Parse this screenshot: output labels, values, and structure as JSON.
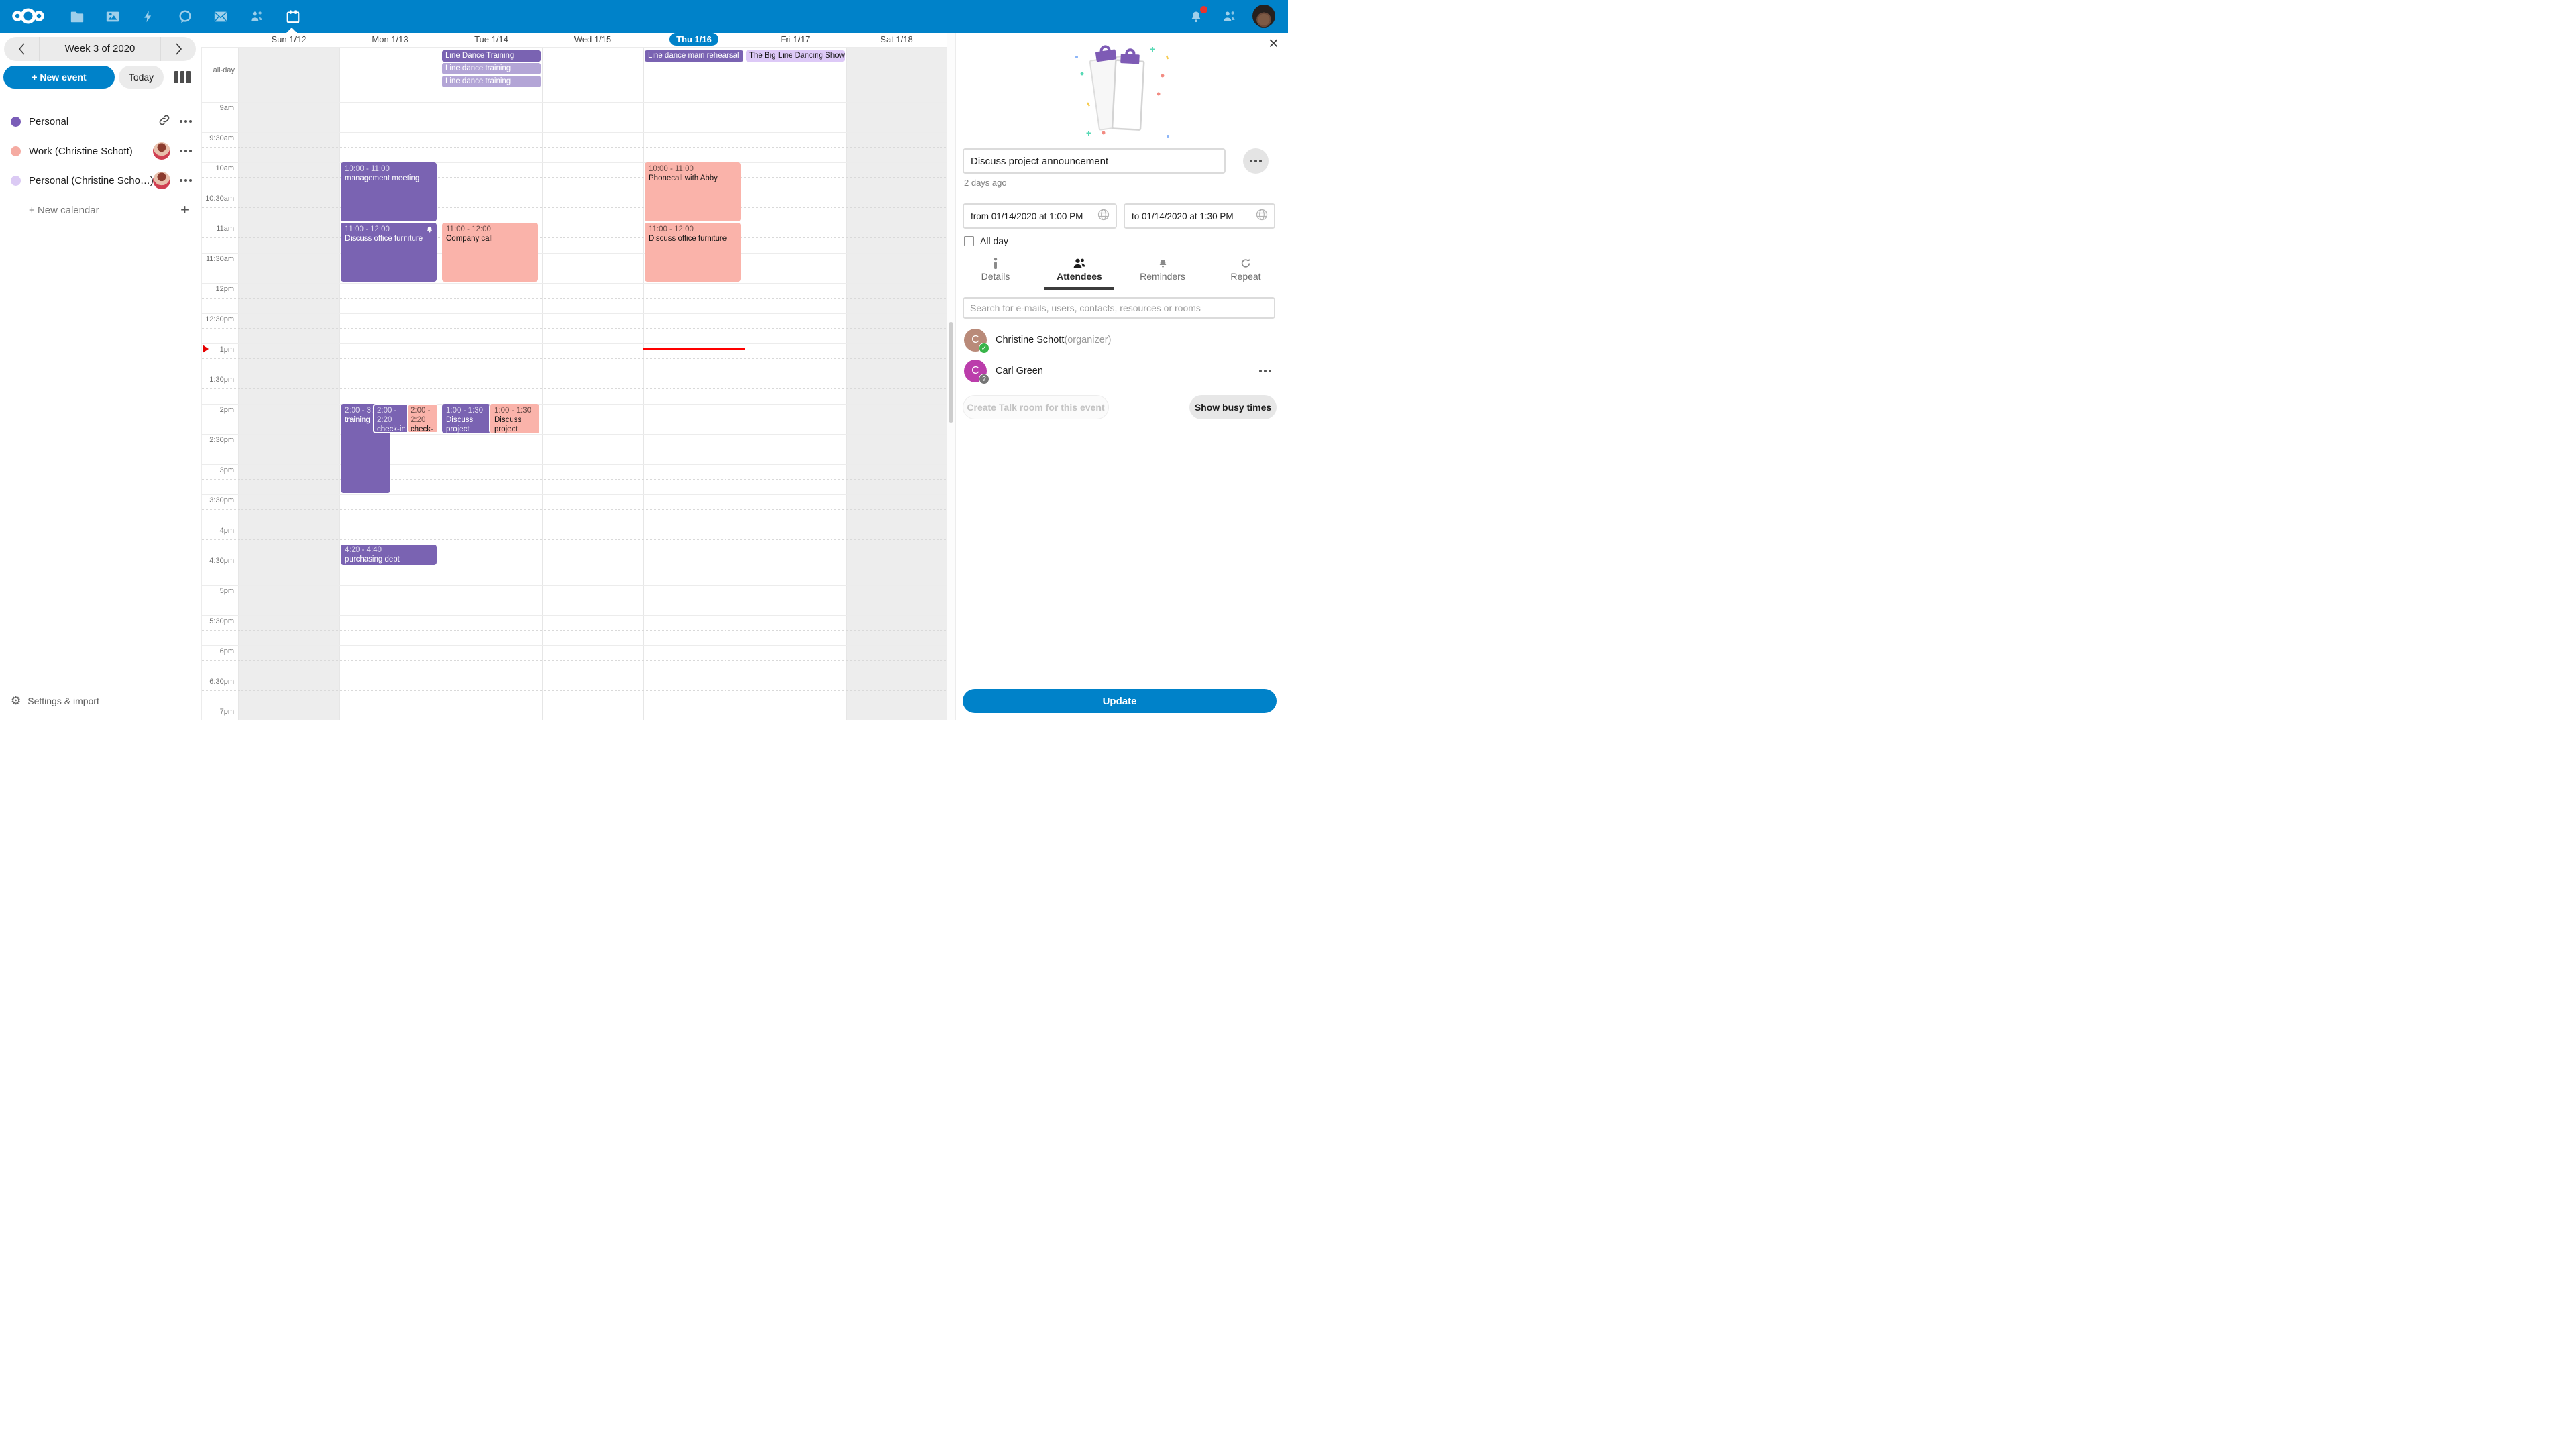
{
  "colors": {
    "accent": "#0082c9",
    "event_purple": "#7a63b2",
    "event_purple_light": "#b3a5d6",
    "event_lavender": "#ddc9f7",
    "event_salmon": "#fab3aa",
    "now_line_red": "#ff0000",
    "notification_red": "#e9322d",
    "weekend_bg": "#ededed"
  },
  "topbar": {
    "app_icons": [
      "files-icon",
      "photos-icon",
      "activity-icon",
      "talk-icon",
      "mail-icon",
      "contacts-icon",
      "calendar-icon"
    ],
    "active_app": "calendar"
  },
  "sidebar": {
    "week_label": "Week 3 of 2020",
    "new_event_label": "+ New event",
    "today_label": "Today",
    "calendars": [
      {
        "name": "Personal",
        "color": "#7a5db8",
        "has_link": true
      },
      {
        "name": "Work (Christine Schott)",
        "color": "#f5aba2",
        "has_avatar": true
      },
      {
        "name": "Personal (Christine Scho…)",
        "color": "#dbcaf4",
        "has_avatar": true
      }
    ],
    "new_calendar_label": "+ New calendar",
    "settings_label": "Settings & import"
  },
  "calendar": {
    "days": [
      "Sun 1/12",
      "Mon 1/13",
      "Tue 1/14",
      "Wed 1/15",
      "Thu 1/16",
      "Fri 1/17",
      "Sat 1/18"
    ],
    "active_day": "Thu 1/16",
    "allday_label": "all-day",
    "time_labels": [
      "9am",
      "9:30am",
      "10am",
      "10:30am",
      "11am",
      "11:30am",
      "12pm",
      "12:30pm",
      "1pm",
      "1:30pm",
      "2pm",
      "2:30pm",
      "3pm",
      "3:30pm",
      "4pm",
      "4:30pm",
      "5pm",
      "5:30pm",
      "6pm",
      "6:30pm",
      "7pm"
    ],
    "allday_events": [
      {
        "title": "Line Dance Training",
        "day": "Tue 1/14",
        "style": "solid"
      },
      {
        "title": "Line dance training",
        "day": "Tue 1/14",
        "style": "cancelled"
      },
      {
        "title": "Line dance training",
        "day": "Tue 1/14",
        "style": "cancelled"
      },
      {
        "title": "Line dance main rehearsal",
        "day": "Thu 1/16",
        "style": "solid"
      },
      {
        "title": "The Big Line Dancing Show",
        "day": "Fri 1/17",
        "style": "lavender"
      }
    ],
    "events": [
      {
        "time": "10:00 - 11:00",
        "title": "management meeting",
        "day": "Mon 1/13",
        "calendar": "purple"
      },
      {
        "time": "11:00 - 12:00",
        "title": "Discuss office furniture",
        "day": "Mon 1/13",
        "calendar": "purple",
        "has_reminder": true
      },
      {
        "time": "2:00 - 3:30",
        "title": "training",
        "day": "Mon 1/13",
        "calendar": "purple"
      },
      {
        "time": "2:00 - 2:20",
        "title": "check-in",
        "day": "Mon 1/13",
        "calendar": "purple"
      },
      {
        "time": "2:00 - 2:20",
        "title": "check-in",
        "day": "Mon 1/13",
        "calendar": "salmon"
      },
      {
        "time": "4:20 - 4:40",
        "title": "purchasing dept",
        "day": "Mon 1/13",
        "calendar": "purple"
      },
      {
        "time": "11:00 - 12:00",
        "title": "Company call",
        "day": "Tue 1/14",
        "calendar": "salmon"
      },
      {
        "time": "1:00 - 1:30",
        "title": "Discuss project announcement",
        "day": "Tue 1/14",
        "calendar": "purple"
      },
      {
        "time": "1:00 - 1:30",
        "title": "Discuss project",
        "day": "Tue 1/14",
        "calendar": "salmon"
      },
      {
        "time": "10:00 - 11:00",
        "title": "Phonecall with Abby",
        "day": "Thu 1/16",
        "calendar": "salmon"
      },
      {
        "time": "11:00 - 12:00",
        "title": "Discuss office furniture",
        "day": "Thu 1/16",
        "calendar": "salmon"
      }
    ]
  },
  "panel": {
    "title_value": "Discuss project announcement",
    "modified": "2 days ago",
    "from_value": "from 01/14/2020 at 1:00 PM",
    "to_value": "to 01/14/2020 at 1:30 PM",
    "all_day_label": "All day",
    "all_day_checked": false,
    "tabs": [
      {
        "label": "Details",
        "icon": "info-icon"
      },
      {
        "label": "Attendees",
        "icon": "people-icon",
        "active": true
      },
      {
        "label": "Reminders",
        "icon": "bell-icon"
      },
      {
        "label": "Repeat",
        "icon": "repeat-icon"
      }
    ],
    "search_placeholder": "Search for e-mails, users, contacts, resources or rooms",
    "attendees": [
      {
        "name": "Christine Schott",
        "suffix": "(organizer)",
        "initial": "C",
        "color": "#b98a79",
        "badge": "accepted"
      },
      {
        "name": "Carl Green",
        "suffix": "",
        "initial": "C",
        "color": "#bb3dab",
        "badge": "pending",
        "has_menu": true
      }
    ],
    "talk_button_label": "Create Talk room for this event",
    "busy_button_label": "Show busy times",
    "update_button_label": "Update"
  }
}
